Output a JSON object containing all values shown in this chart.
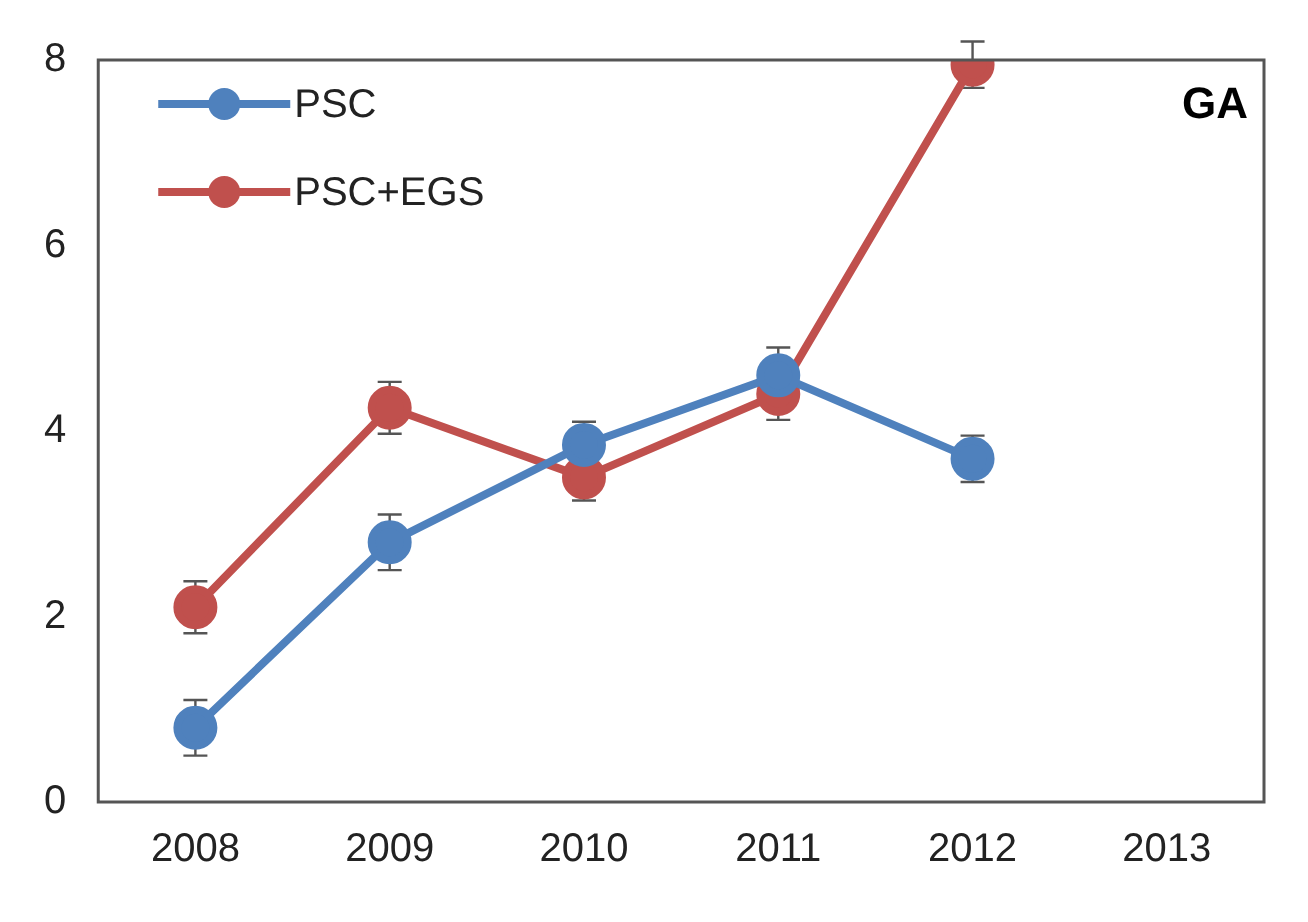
{
  "chart_data": {
    "type": "line",
    "categories": [
      "2008",
      "2009",
      "2010",
      "2011",
      "2012",
      "2013"
    ],
    "series": [
      {
        "name": "PSC",
        "color": "#4f81bd",
        "values": [
          0.8,
          2.8,
          3.85,
          4.6,
          3.7,
          null
        ],
        "errors": [
          0.3,
          0.3,
          0.25,
          0.3,
          0.25,
          null
        ]
      },
      {
        "name": "PSC+EGS",
        "color": "#c0504d",
        "values": [
          2.1,
          4.25,
          3.5,
          4.4,
          7.95,
          null
        ],
        "errors": [
          0.28,
          0.28,
          0.25,
          0.28,
          0.25,
          null
        ]
      }
    ],
    "ylim": [
      0,
      8
    ],
    "yticks": [
      0,
      2,
      4,
      6,
      8
    ],
    "grid": false,
    "legend": "top left",
    "marker": "circle",
    "line_style": "solid",
    "annotations": [
      "GA"
    ]
  }
}
